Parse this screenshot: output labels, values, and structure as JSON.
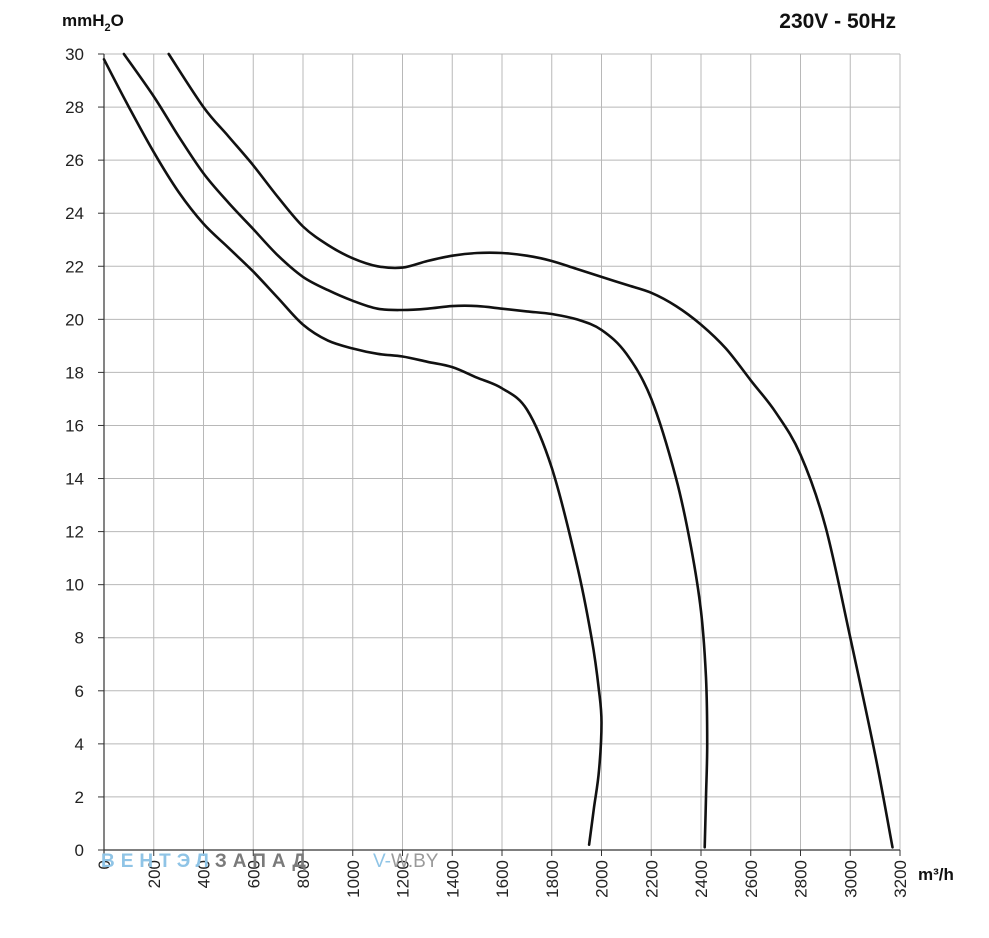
{
  "header": {
    "voltage_label": "230V - 50Hz"
  },
  "watermark": {
    "brand_part1": "ВЕНТЭЛ",
    "brand_part2": "ЗАПАД",
    "site_prefix": "V-",
    "site_suffix": "W.BY",
    "color_blue": "#8fc4e6",
    "color_gray": "#7a7a7a"
  },
  "chart_data": {
    "type": "line",
    "title": "",
    "ylabel_main": "mmH",
    "ylabel_sub": "2",
    "ylabel_tail": "O",
    "xlabel": "m³/h",
    "xlim": [
      0,
      3200
    ],
    "ylim": [
      0,
      30
    ],
    "grid": true,
    "x_ticks": [
      "0",
      "200",
      "400",
      "600",
      "800",
      "1000",
      "1200",
      "1400",
      "1600",
      "1800",
      "2000",
      "2200",
      "2400",
      "2600",
      "2800",
      "3000",
      "3200"
    ],
    "y_ticks": [
      "0",
      "2",
      "4",
      "6",
      "8",
      "10",
      "12",
      "14",
      "16",
      "18",
      "20",
      "22",
      "24",
      "26",
      "28",
      "30"
    ],
    "series": [
      {
        "values": [
          [
            0,
            29.8
          ],
          [
            100,
            28.0
          ],
          [
            200,
            26.3
          ],
          [
            300,
            24.8
          ],
          [
            400,
            23.6
          ],
          [
            500,
            22.7
          ],
          [
            600,
            21.8
          ],
          [
            700,
            20.8
          ],
          [
            800,
            19.8
          ],
          [
            900,
            19.2
          ],
          [
            1000,
            18.9
          ],
          [
            1100,
            18.7
          ],
          [
            1200,
            18.6
          ],
          [
            1300,
            18.4
          ],
          [
            1400,
            18.2
          ],
          [
            1500,
            17.8
          ],
          [
            1600,
            17.4
          ],
          [
            1700,
            16.6
          ],
          [
            1800,
            14.4
          ],
          [
            1900,
            10.8
          ],
          [
            1960,
            8.0
          ],
          [
            1990,
            6.0
          ],
          [
            2000,
            4.8
          ],
          [
            1990,
            3.0
          ],
          [
            1970,
            1.6
          ],
          [
            1950,
            0.2
          ]
        ]
      },
      {
        "values": [
          [
            80,
            30.0
          ],
          [
            200,
            28.4
          ],
          [
            300,
            26.9
          ],
          [
            400,
            25.5
          ],
          [
            500,
            24.4
          ],
          [
            600,
            23.4
          ],
          [
            700,
            22.4
          ],
          [
            800,
            21.6
          ],
          [
            900,
            21.1
          ],
          [
            1000,
            20.7
          ],
          [
            1100,
            20.4
          ],
          [
            1200,
            20.35
          ],
          [
            1300,
            20.4
          ],
          [
            1400,
            20.5
          ],
          [
            1500,
            20.5
          ],
          [
            1600,
            20.4
          ],
          [
            1700,
            20.3
          ],
          [
            1800,
            20.2
          ],
          [
            1900,
            20.0
          ],
          [
            2000,
            19.6
          ],
          [
            2100,
            18.7
          ],
          [
            2200,
            17.0
          ],
          [
            2300,
            14.0
          ],
          [
            2360,
            11.4
          ],
          [
            2400,
            9.0
          ],
          [
            2420,
            6.5
          ],
          [
            2425,
            4.0
          ],
          [
            2420,
            2.0
          ],
          [
            2415,
            0.1
          ]
        ]
      },
      {
        "values": [
          [
            260,
            30.0
          ],
          [
            400,
            28.0
          ],
          [
            500,
            26.9
          ],
          [
            600,
            25.8
          ],
          [
            700,
            24.6
          ],
          [
            800,
            23.5
          ],
          [
            900,
            22.8
          ],
          [
            1000,
            22.3
          ],
          [
            1100,
            22.0
          ],
          [
            1200,
            21.95
          ],
          [
            1300,
            22.2
          ],
          [
            1400,
            22.4
          ],
          [
            1500,
            22.5
          ],
          [
            1600,
            22.5
          ],
          [
            1700,
            22.4
          ],
          [
            1800,
            22.2
          ],
          [
            1900,
            21.9
          ],
          [
            2000,
            21.6
          ],
          [
            2100,
            21.3
          ],
          [
            2200,
            21.0
          ],
          [
            2300,
            20.5
          ],
          [
            2400,
            19.8
          ],
          [
            2500,
            18.9
          ],
          [
            2600,
            17.7
          ],
          [
            2700,
            16.5
          ],
          [
            2800,
            14.9
          ],
          [
            2900,
            12.2
          ],
          [
            3000,
            8.0
          ],
          [
            3100,
            3.6
          ],
          [
            3170,
            0.1
          ]
        ]
      }
    ]
  }
}
